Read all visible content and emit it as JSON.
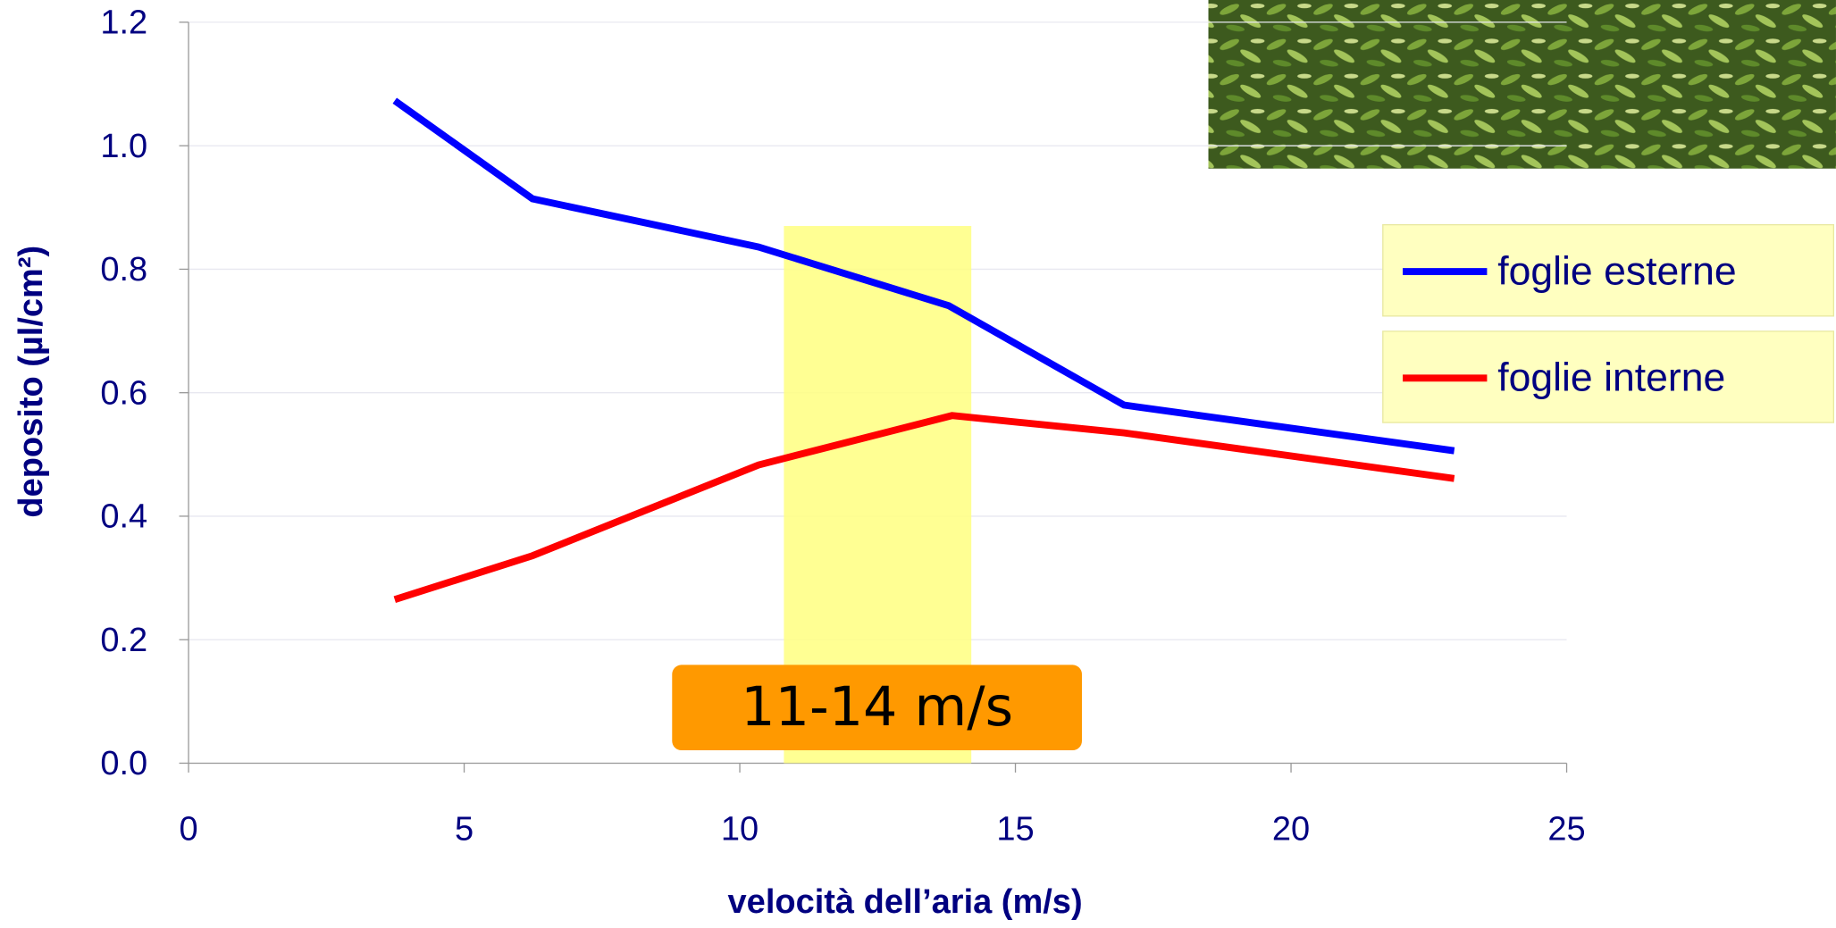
{
  "chart_data": {
    "type": "line",
    "xlabel": "velocità dell’aria (m/s)",
    "ylabel": "deposito (µl/cm²)",
    "series": [
      {
        "name": "foglie esterne",
        "color": "#0000ff",
        "x": [
          3.74,
          6.24,
          10.34,
          13.79,
          16.97,
          22.96
        ],
        "values": [
          1.073,
          0.914,
          0.836,
          0.741,
          0.58,
          0.506
        ]
      },
      {
        "name": "foglie interne",
        "color": "#ff0000",
        "x": [
          3.74,
          6.24,
          10.34,
          13.85,
          16.97,
          22.96
        ],
        "values": [
          0.265,
          0.336,
          0.483,
          0.563,
          0.535,
          0.461
        ]
      }
    ],
    "xlim": [
      0,
      25
    ],
    "xticks": [
      0,
      5,
      10,
      15,
      20,
      25
    ],
    "ylim": [
      0,
      1.2
    ],
    "yticks": [
      {
        "value": 0,
        "label": "0.0"
      },
      0.2,
      0.4,
      0.6,
      0.8,
      {
        "value": 1,
        "label": "1.0"
      },
      1.2
    ],
    "grid": true,
    "highlight": {
      "xlim": [
        10.8,
        14.2
      ],
      "ylim": [
        0,
        0.87
      ],
      "color": "#ffff80",
      "label": "11-14 m/s"
    }
  }
}
